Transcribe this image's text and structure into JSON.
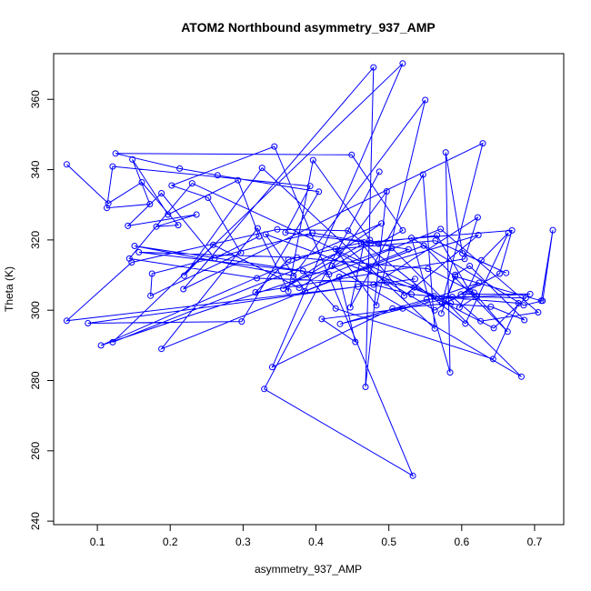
{
  "chart_data": {
    "type": "line",
    "title": "ATOM2 Northbound asymmetry_937_AMP",
    "xlabel": "asymmetry_937_AMP",
    "ylabel": "Theta (K)",
    "xticks": [
      "0.1",
      "0.2",
      "0.3",
      "0.4",
      "0.5",
      "0.6",
      "0.7"
    ],
    "yticks": [
      "240",
      "260",
      "280",
      "300",
      "320",
      "340",
      "360"
    ],
    "xlim": [
      0.04,
      0.74
    ],
    "ylim": [
      239,
      373
    ],
    "grid": false,
    "marker": "open-circle",
    "color": "#0000ff",
    "series": [
      {
        "points": [
          [
            0.058,
            341.5
          ],
          [
            0.115,
            330.4
          ],
          [
            0.161,
            336.4
          ],
          [
            0.211,
            324.2
          ],
          [
            0.181,
            323.8
          ],
          [
            0.236,
            327.2
          ],
          [
            0.142,
            324.0
          ],
          [
            0.188,
            333.3
          ],
          [
            0.261,
            314.8
          ],
          [
            0.322,
            321.0
          ],
          [
            0.293,
            337.0
          ],
          [
            0.197,
            327.2
          ],
          [
            0.148,
            342.9
          ],
          [
            0.172,
            330.2
          ],
          [
            0.113,
            329.1
          ],
          [
            0.121,
            340.9
          ],
          [
            0.392,
            335.3
          ],
          [
            0.358,
            322.1
          ],
          [
            0.486,
            318.9
          ],
          [
            0.519,
            322.7
          ],
          [
            0.449,
            344.2
          ],
          [
            0.125,
            344.6
          ],
          [
            0.213,
            340.3
          ],
          [
            0.265,
            338.4
          ],
          [
            0.404,
            333.7
          ],
          [
            0.298,
            296.8
          ],
          [
            0.087,
            296.3
          ],
          [
            0.536,
            308.9
          ],
          [
            0.458,
            306.7
          ],
          [
            0.058,
            297.0
          ],
          [
            0.147,
            313.6
          ],
          [
            0.347,
            323.0
          ],
          [
            0.444,
            322.6
          ],
          [
            0.605,
            296.2
          ],
          [
            0.664,
            322.0
          ],
          [
            0.627,
            314.2
          ],
          [
            0.597,
            300.8
          ],
          [
            0.621,
            304.0
          ],
          [
            0.611,
            305.4
          ],
          [
            0.566,
            321.3
          ],
          [
            0.475,
            319.1
          ],
          [
            0.377,
            306.4
          ],
          [
            0.259,
            318.6
          ],
          [
            0.219,
            309.8
          ],
          [
            0.326,
            340.5
          ],
          [
            0.563,
            294.8
          ],
          [
            0.547,
            338.6
          ],
          [
            0.447,
            300.8
          ],
          [
            0.466,
            319.3
          ],
          [
            0.669,
            322.7
          ],
          [
            0.652,
            310.4
          ],
          [
            0.599,
            304.5
          ],
          [
            0.694,
            304.6
          ],
          [
            0.552,
            303.1
          ],
          [
            0.433,
            296.1
          ],
          [
            0.587,
            303.8
          ],
          [
            0.626,
            296.9
          ],
          [
            0.705,
            299.4
          ],
          [
            0.571,
            323.1
          ],
          [
            0.418,
            310.2
          ],
          [
            0.157,
            316.5
          ],
          [
            0.374,
            315.0
          ],
          [
            0.554,
            311.8
          ],
          [
            0.617,
            305.0
          ],
          [
            0.663,
            293.9
          ],
          [
            0.548,
            318.4
          ],
          [
            0.385,
            305.4
          ],
          [
            0.331,
            321.6
          ],
          [
            0.562,
            304.0
          ],
          [
            0.688,
            303.5
          ],
          [
            0.644,
            294.9
          ],
          [
            0.535,
            306.5
          ],
          [
            0.497,
            307.9
          ],
          [
            0.319,
            309.1
          ],
          [
            0.144,
            314.7
          ],
          [
            0.23,
            336.1
          ],
          [
            0.585,
            302.0
          ],
          [
            0.505,
            300.5
          ],
          [
            0.34,
            283.8
          ],
          [
            0.519,
            370.2
          ],
          [
            0.121,
            290.9
          ],
          [
            0.431,
            316.4
          ],
          [
            0.563,
            300.0
          ],
          [
            0.624,
            307.8
          ],
          [
            0.519,
            300.5
          ],
          [
            0.408,
            297.5
          ],
          [
            0.454,
            291.0
          ],
          [
            0.432,
            309.5
          ],
          [
            0.623,
            321.4
          ],
          [
            0.521,
            304.1
          ],
          [
            0.462,
            319.2
          ],
          [
            0.362,
            314.4
          ],
          [
            0.317,
            305.1
          ],
          [
            0.604,
            314.6
          ],
          [
            0.622,
            326.4
          ],
          [
            0.479,
            307.3
          ],
          [
            0.531,
            304.5
          ],
          [
            0.678,
            302.0
          ],
          [
            0.643,
            286.1
          ],
          [
            0.427,
            300.5
          ],
          [
            0.382,
            311.2
          ],
          [
            0.151,
            318.3
          ],
          [
            0.369,
            309.8
          ],
          [
            0.55,
            359.8
          ],
          [
            0.483,
            301.4
          ],
          [
            0.427,
            317.4
          ],
          [
            0.564,
            319.8
          ],
          [
            0.661,
            310.6
          ],
          [
            0.601,
            316.2
          ],
          [
            0.578,
            344.9
          ],
          [
            0.584,
            282.3
          ],
          [
            0.531,
            320.6
          ],
          [
            0.685,
            301.4
          ],
          [
            0.711,
            302.7
          ],
          [
            0.725,
            322.8
          ],
          [
            0.709,
            302.7
          ],
          [
            0.591,
            309.6
          ],
          [
            0.572,
            299.1
          ],
          [
            0.591,
            310.1
          ],
          [
            0.611,
            312.6
          ],
          [
            0.686,
            297.2
          ],
          [
            0.64,
            301.0
          ],
          [
            0.573,
            301.9
          ],
          [
            0.629,
            347.5
          ],
          [
            0.218,
            306.0
          ],
          [
            0.479,
            369.1
          ],
          [
            0.468,
            278.2
          ],
          [
            0.497,
            333.8
          ],
          [
            0.422,
            312.6
          ],
          [
            0.682,
            281.1
          ],
          [
            0.504,
            317.7
          ],
          [
            0.105,
            290.0
          ],
          [
            0.49,
            324.7
          ],
          [
            0.355,
            306.1
          ],
          [
            0.474,
            320.0
          ],
          [
            0.396,
            342.7
          ],
          [
            0.362,
            305.4
          ],
          [
            0.32,
            323.3
          ],
          [
            0.188,
            289.0
          ],
          [
            0.527,
            317.3
          ],
          [
            0.395,
            322.0
          ],
          [
            0.175,
            310.4
          ],
          [
            0.173,
            304.1
          ],
          [
            0.297,
            316.3
          ],
          [
            0.252,
            332.0
          ],
          [
            0.202,
            335.5
          ],
          [
            0.343,
            346.6
          ],
          [
            0.533,
            252.9
          ],
          [
            0.329,
            277.6
          ],
          [
            0.487,
            339.4
          ]
        ]
      }
    ]
  }
}
